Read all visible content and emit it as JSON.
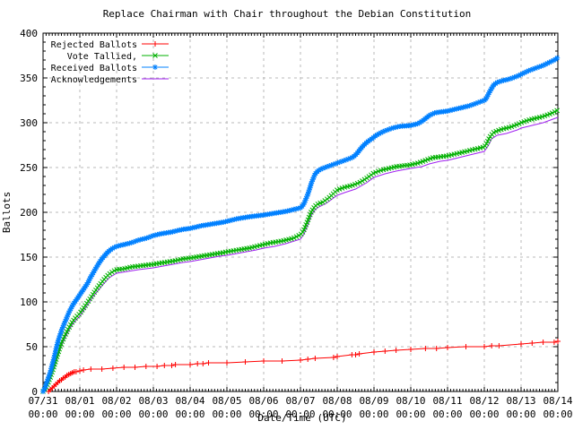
{
  "chart_data": {
    "type": "line",
    "title": "Replace Chairman with Chair throughout the Debian Constitution",
    "xlabel": "Date/Time (UTC)",
    "ylabel": "Ballots",
    "xlim": [
      0,
      14
    ],
    "ylim": [
      0,
      400
    ],
    "grid": true,
    "legend_position": "top-left",
    "y_ticks": [
      0,
      50,
      100,
      150,
      200,
      250,
      300,
      350,
      400
    ],
    "x_tick_dates": [
      "07/31",
      "08/01",
      "08/02",
      "08/03",
      "08/04",
      "08/05",
      "08/06",
      "08/07",
      "08/08",
      "08/09",
      "08/10",
      "08/11",
      "08/12",
      "08/13",
      "08/14"
    ],
    "x_tick_time": "00:00",
    "colors": {
      "grid": "#b9b9b9",
      "border": "#000000",
      "text": "#000000",
      "background": "#ffffff"
    },
    "x_unit": "days since 07/31 00:00 UTC",
    "series": [
      {
        "name": "Rejected Ballots",
        "color": "#ff0000",
        "marker": "plus",
        "marker_step_px": 0,
        "points": [
          [
            0,
            0
          ],
          [
            0.15,
            0
          ],
          [
            0.2,
            2
          ],
          [
            0.25,
            4
          ],
          [
            0.3,
            6
          ],
          [
            0.35,
            8
          ],
          [
            0.4,
            10
          ],
          [
            0.45,
            12
          ],
          [
            0.5,
            13
          ],
          [
            0.55,
            15
          ],
          [
            0.6,
            16
          ],
          [
            0.65,
            18
          ],
          [
            0.7,
            19
          ],
          [
            0.75,
            20
          ],
          [
            0.8,
            21
          ],
          [
            0.85,
            22
          ],
          [
            0.9,
            22
          ],
          [
            1.0,
            23
          ],
          [
            1.1,
            24
          ],
          [
            1.3,
            25
          ],
          [
            1.6,
            25
          ],
          [
            1.9,
            26
          ],
          [
            2.2,
            27
          ],
          [
            2.5,
            27
          ],
          [
            2.8,
            28
          ],
          [
            3.1,
            28
          ],
          [
            3.3,
            29
          ],
          [
            3.5,
            29
          ],
          [
            3.6,
            30
          ],
          [
            4.0,
            30
          ],
          [
            4.2,
            31
          ],
          [
            4.35,
            31
          ],
          [
            4.5,
            32
          ],
          [
            5.0,
            32
          ],
          [
            5.5,
            33
          ],
          [
            6.0,
            34
          ],
          [
            6.5,
            34
          ],
          [
            7.0,
            35
          ],
          [
            7.2,
            36
          ],
          [
            7.4,
            37
          ],
          [
            7.9,
            38
          ],
          [
            8.0,
            39
          ],
          [
            8.4,
            41
          ],
          [
            8.5,
            41
          ],
          [
            8.6,
            42
          ],
          [
            9.0,
            44
          ],
          [
            9.3,
            45
          ],
          [
            9.6,
            46
          ],
          [
            10.0,
            47
          ],
          [
            10.4,
            48
          ],
          [
            10.7,
            48
          ],
          [
            11.0,
            49
          ],
          [
            11.5,
            50
          ],
          [
            12.0,
            50
          ],
          [
            12.2,
            51
          ],
          [
            12.4,
            51
          ],
          [
            13.0,
            53
          ],
          [
            13.3,
            54
          ],
          [
            13.6,
            55
          ],
          [
            13.9,
            55
          ],
          [
            14.0,
            56
          ]
        ]
      },
      {
        "name": "Vote Tallied,",
        "color": "#00b000",
        "marker": "cross",
        "marker_step_px": 3,
        "points": [
          [
            0,
            0
          ],
          [
            0.05,
            3
          ],
          [
            0.1,
            6
          ],
          [
            0.2,
            16
          ],
          [
            0.3,
            28
          ],
          [
            0.4,
            42
          ],
          [
            0.5,
            54
          ],
          [
            0.6,
            63
          ],
          [
            0.7,
            71
          ],
          [
            0.8,
            78
          ],
          [
            0.9,
            83
          ],
          [
            1.0,
            87
          ],
          [
            1.1,
            93
          ],
          [
            1.2,
            99
          ],
          [
            1.3,
            105
          ],
          [
            1.4,
            111
          ],
          [
            1.5,
            117
          ],
          [
            1.6,
            122
          ],
          [
            1.7,
            127
          ],
          [
            1.8,
            131
          ],
          [
            1.9,
            134
          ],
          [
            2.0,
            136
          ],
          [
            2.2,
            137
          ],
          [
            2.4,
            139
          ],
          [
            2.6,
            140
          ],
          [
            2.8,
            141
          ],
          [
            3.0,
            142
          ],
          [
            3.3,
            144
          ],
          [
            3.6,
            146
          ],
          [
            3.8,
            148
          ],
          [
            4.0,
            149
          ],
          [
            4.3,
            151
          ],
          [
            4.6,
            153
          ],
          [
            4.9,
            155
          ],
          [
            5.0,
            156
          ],
          [
            5.3,
            158
          ],
          [
            5.6,
            160
          ],
          [
            5.8,
            162
          ],
          [
            6.0,
            164
          ],
          [
            6.2,
            166
          ],
          [
            6.5,
            168
          ],
          [
            6.8,
            171
          ],
          [
            7.0,
            175
          ],
          [
            7.05,
            177
          ],
          [
            7.1,
            181
          ],
          [
            7.2,
            191
          ],
          [
            7.3,
            201
          ],
          [
            7.4,
            207
          ],
          [
            7.5,
            210
          ],
          [
            7.6,
            211
          ],
          [
            7.8,
            217
          ],
          [
            8.0,
            225
          ],
          [
            8.2,
            228
          ],
          [
            8.4,
            230
          ],
          [
            8.6,
            233
          ],
          [
            8.8,
            238
          ],
          [
            9.0,
            244
          ],
          [
            9.2,
            247
          ],
          [
            9.4,
            249
          ],
          [
            9.6,
            251
          ],
          [
            9.8,
            252
          ],
          [
            10.0,
            253
          ],
          [
            10.2,
            255
          ],
          [
            10.4,
            258
          ],
          [
            10.6,
            261
          ],
          [
            10.8,
            262
          ],
          [
            11.0,
            263
          ],
          [
            11.2,
            265
          ],
          [
            11.4,
            267
          ],
          [
            11.6,
            269
          ],
          [
            11.8,
            271
          ],
          [
            12.0,
            273
          ],
          [
            12.05,
            276
          ],
          [
            12.15,
            284
          ],
          [
            12.25,
            289
          ],
          [
            12.35,
            291
          ],
          [
            12.5,
            293
          ],
          [
            12.7,
            295
          ],
          [
            12.9,
            298
          ],
          [
            13.0,
            300
          ],
          [
            13.2,
            303
          ],
          [
            13.4,
            305
          ],
          [
            13.6,
            307
          ],
          [
            13.8,
            310
          ],
          [
            14.0,
            314
          ]
        ]
      },
      {
        "name": "Received Ballots",
        "color": "#0080ff",
        "marker": "asterisk",
        "marker_step_px": 2.5,
        "points": [
          [
            0,
            0
          ],
          [
            0.05,
            4
          ],
          [
            0.1,
            10
          ],
          [
            0.2,
            22
          ],
          [
            0.3,
            38
          ],
          [
            0.4,
            55
          ],
          [
            0.5,
            68
          ],
          [
            0.6,
            78
          ],
          [
            0.7,
            88
          ],
          [
            0.8,
            96
          ],
          [
            0.9,
            102
          ],
          [
            1.0,
            108
          ],
          [
            1.1,
            114
          ],
          [
            1.2,
            120
          ],
          [
            1.3,
            128
          ],
          [
            1.4,
            135
          ],
          [
            1.5,
            142
          ],
          [
            1.6,
            148
          ],
          [
            1.7,
            153
          ],
          [
            1.8,
            157
          ],
          [
            1.9,
            160
          ],
          [
            2.0,
            162
          ],
          [
            2.2,
            164
          ],
          [
            2.4,
            166
          ],
          [
            2.6,
            169
          ],
          [
            2.8,
            171
          ],
          [
            3.0,
            174
          ],
          [
            3.2,
            176
          ],
          [
            3.5,
            178
          ],
          [
            3.8,
            181
          ],
          [
            4.0,
            182
          ],
          [
            4.3,
            185
          ],
          [
            4.6,
            187
          ],
          [
            4.9,
            189
          ],
          [
            5.0,
            190
          ],
          [
            5.3,
            193
          ],
          [
            5.6,
            195
          ],
          [
            6.0,
            197
          ],
          [
            6.3,
            199
          ],
          [
            6.6,
            201
          ],
          [
            7.0,
            205
          ],
          [
            7.05,
            207
          ],
          [
            7.1,
            210
          ],
          [
            7.2,
            220
          ],
          [
            7.3,
            233
          ],
          [
            7.4,
            243
          ],
          [
            7.5,
            247
          ],
          [
            7.6,
            249
          ],
          [
            7.8,
            252
          ],
          [
            8.0,
            255
          ],
          [
            8.2,
            258
          ],
          [
            8.4,
            261
          ],
          [
            8.5,
            264
          ],
          [
            8.6,
            269
          ],
          [
            8.7,
            274
          ],
          [
            8.8,
            278
          ],
          [
            8.9,
            281
          ],
          [
            9.0,
            284
          ],
          [
            9.1,
            287
          ],
          [
            9.3,
            291
          ],
          [
            9.5,
            294
          ],
          [
            9.7,
            296
          ],
          [
            10.0,
            297
          ],
          [
            10.2,
            299
          ],
          [
            10.35,
            303
          ],
          [
            10.5,
            308
          ],
          [
            10.65,
            311
          ],
          [
            10.8,
            312
          ],
          [
            11.0,
            313
          ],
          [
            11.2,
            315
          ],
          [
            11.4,
            317
          ],
          [
            11.6,
            319
          ],
          [
            11.8,
            322
          ],
          [
            12.0,
            325
          ],
          [
            12.05,
            327
          ],
          [
            12.15,
            335
          ],
          [
            12.25,
            342
          ],
          [
            12.35,
            345
          ],
          [
            12.5,
            347
          ],
          [
            12.7,
            349
          ],
          [
            12.9,
            352
          ],
          [
            13.0,
            354
          ],
          [
            13.2,
            358
          ],
          [
            13.4,
            361
          ],
          [
            13.6,
            364
          ],
          [
            13.8,
            368
          ],
          [
            13.95,
            371
          ],
          [
            14.0,
            373
          ]
        ]
      },
      {
        "name": "Acknowledgements",
        "color": "#a020f0",
        "marker": "none",
        "marker_step_px": null,
        "points": [
          [
            0,
            0
          ],
          [
            0.1,
            5
          ],
          [
            0.2,
            14
          ],
          [
            0.3,
            26
          ],
          [
            0.4,
            39
          ],
          [
            0.5,
            51
          ],
          [
            0.6,
            60
          ],
          [
            0.7,
            68
          ],
          [
            0.8,
            75
          ],
          [
            0.9,
            80
          ],
          [
            1.0,
            84
          ],
          [
            1.2,
            96
          ],
          [
            1.4,
            108
          ],
          [
            1.6,
            118
          ],
          [
            1.8,
            127
          ],
          [
            2.0,
            132
          ],
          [
            2.3,
            134
          ],
          [
            2.6,
            136
          ],
          [
            3.0,
            138
          ],
          [
            3.4,
            141
          ],
          [
            3.8,
            144
          ],
          [
            4.0,
            145
          ],
          [
            4.4,
            148
          ],
          [
            4.8,
            151
          ],
          [
            5.0,
            152
          ],
          [
            5.4,
            155
          ],
          [
            5.8,
            158
          ],
          [
            6.0,
            160
          ],
          [
            6.3,
            162
          ],
          [
            6.6,
            165
          ],
          [
            7.0,
            170
          ],
          [
            7.1,
            176
          ],
          [
            7.2,
            186
          ],
          [
            7.3,
            197
          ],
          [
            7.4,
            203
          ],
          [
            7.5,
            206
          ],
          [
            7.7,
            210
          ],
          [
            8.0,
            219
          ],
          [
            8.2,
            222
          ],
          [
            8.5,
            226
          ],
          [
            8.8,
            233
          ],
          [
            9.0,
            239
          ],
          [
            9.3,
            243
          ],
          [
            9.6,
            246
          ],
          [
            10.0,
            249
          ],
          [
            10.3,
            251
          ],
          [
            10.5,
            254
          ],
          [
            10.8,
            257
          ],
          [
            11.0,
            258
          ],
          [
            11.3,
            261
          ],
          [
            11.6,
            264
          ],
          [
            12.0,
            268
          ],
          [
            12.1,
            274
          ],
          [
            12.2,
            282
          ],
          [
            12.35,
            286
          ],
          [
            12.6,
            288
          ],
          [
            12.9,
            292
          ],
          [
            13.0,
            294
          ],
          [
            13.3,
            297
          ],
          [
            13.6,
            300
          ],
          [
            14.0,
            306
          ]
        ]
      }
    ]
  }
}
